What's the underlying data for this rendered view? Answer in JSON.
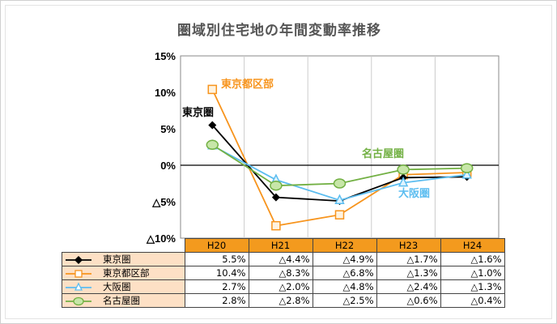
{
  "chart_data": {
    "type": "line",
    "title": "圏域別住宅地の年間変動率推移",
    "categories": [
      "H20",
      "H21",
      "H22",
      "H23",
      "H24"
    ],
    "ylim": [
      -10,
      15
    ],
    "yticks": [
      {
        "v": 15,
        "label": "15%"
      },
      {
        "v": 10,
        "label": "10%"
      },
      {
        "v": 5,
        "label": "5%"
      },
      {
        "v": 0,
        "label": "0%"
      },
      {
        "v": -5,
        "label": "△5%"
      },
      {
        "v": -10,
        "label": "△10%"
      }
    ],
    "grid": "vertical",
    "series": [
      {
        "name": "東京圏",
        "color": "#000000",
        "marker": "diamond",
        "values": [
          5.5,
          -4.4,
          -4.9,
          -1.7,
          -1.6
        ],
        "labels": [
          "5.5%",
          "△4.4%",
          "△4.9%",
          "△1.7%",
          "△1.6%"
        ]
      },
      {
        "name": "東京都区部",
        "color": "#f7941d",
        "marker": "square",
        "values": [
          10.4,
          -8.3,
          -6.8,
          -1.3,
          -1.0
        ],
        "labels": [
          "10.4%",
          "△8.3%",
          "△6.8%",
          "△1.3%",
          "△1.0%"
        ]
      },
      {
        "name": "大阪圏",
        "color": "#5bbdf0",
        "marker": "triangle",
        "values": [
          2.7,
          -2.0,
          -4.8,
          -2.4,
          -1.3
        ],
        "labels": [
          "2.7%",
          "△2.0%",
          "△4.8%",
          "△2.4%",
          "△1.3%"
        ]
      },
      {
        "name": "名古屋圏",
        "color": "#72b043",
        "marker": "circle",
        "values": [
          2.8,
          -2.8,
          -2.5,
          -0.6,
          -0.4
        ],
        "labels": [
          "2.8%",
          "△2.8%",
          "△2.5%",
          "△0.6%",
          "△0.4%"
        ]
      }
    ]
  }
}
